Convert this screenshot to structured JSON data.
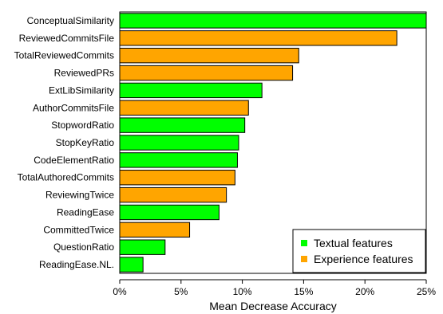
{
  "chart_data": {
    "type": "bar",
    "orientation": "horizontal",
    "categories": [
      "ConceptualSimilarity",
      "ReviewedCommitsFile",
      "TotalReviewedCommits",
      "ReviewedPRs",
      "ExtLibSimilarity",
      "AuthorCommitsFile",
      "StopwordRatio",
      "StopKeyRatio",
      "CodeElementRatio",
      "TotalAuthoredCommits",
      "ReviewingTwice",
      "ReadingEase",
      "CommittedTwice",
      "QuestionRatio",
      "ReadingEase.NL."
    ],
    "values": [
      25.2,
      22.6,
      14.6,
      14.1,
      11.6,
      10.5,
      10.2,
      9.7,
      9.6,
      9.4,
      8.7,
      8.1,
      5.7,
      3.7,
      1.9
    ],
    "groups": [
      "Textual features",
      "Experience features",
      "Experience features",
      "Experience features",
      "Textual features",
      "Experience features",
      "Textual features",
      "Textual features",
      "Textual features",
      "Experience features",
      "Experience features",
      "Textual features",
      "Experience features",
      "Textual features",
      "Textual features"
    ],
    "legend": [
      {
        "name": "Textual features",
        "color": "#00ff00"
      },
      {
        "name": "Experience features",
        "color": "#ffa500"
      }
    ],
    "legend_position": "bottom-right",
    "xlabel": "Mean Decrease Accuracy",
    "xlim": [
      0,
      25
    ],
    "xticks": [
      0,
      5,
      10,
      15,
      20,
      25
    ],
    "xtick_labels": [
      "0%",
      "5%",
      "10%",
      "15%",
      "20%",
      "25%"
    ],
    "grid": false
  }
}
